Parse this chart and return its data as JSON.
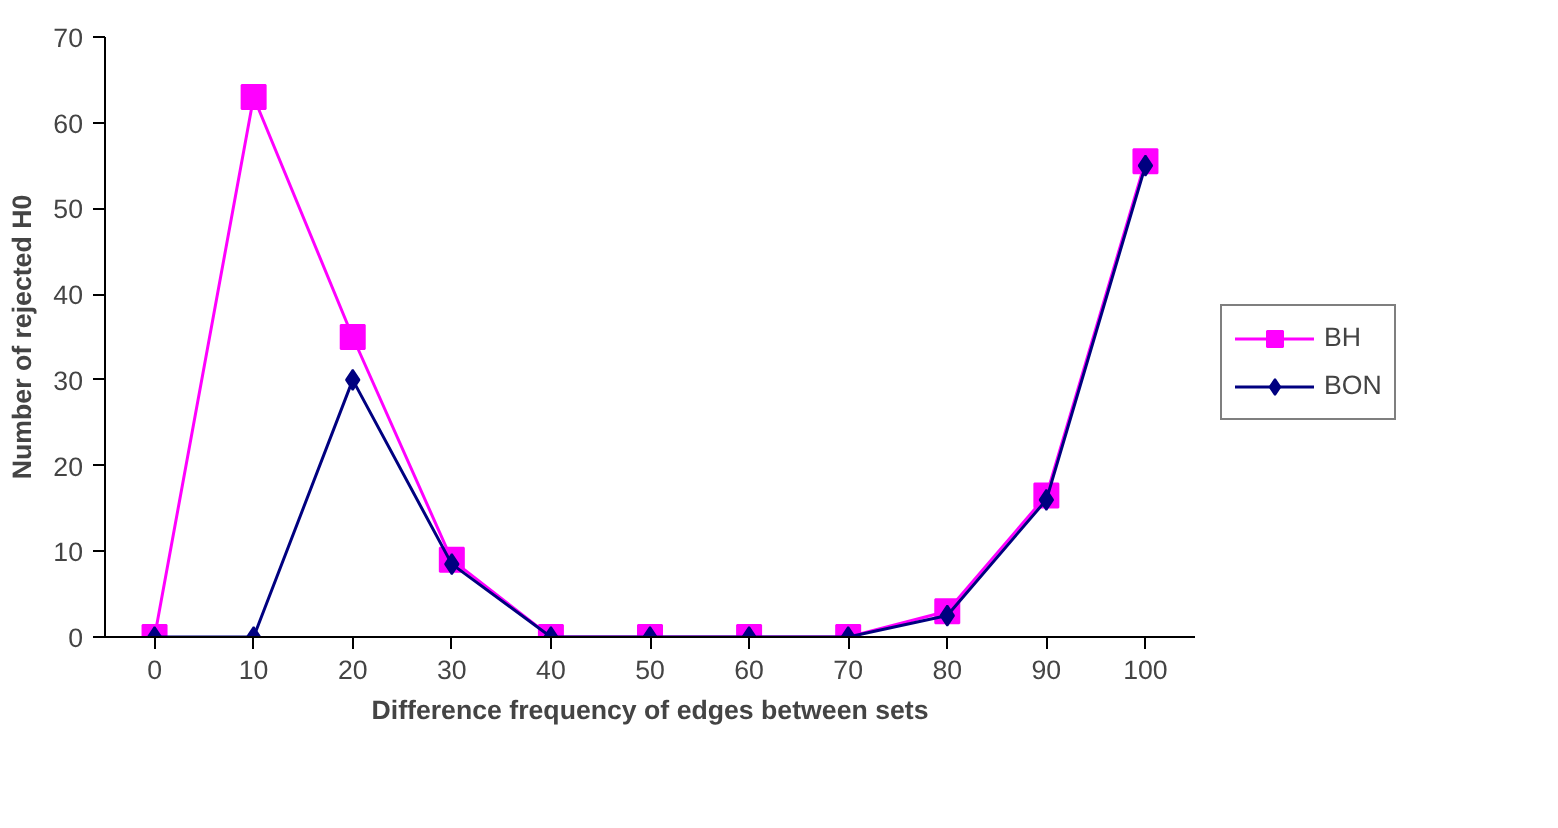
{
  "chart_data": {
    "type": "line",
    "xlabel": "Difference frequency of edges between sets",
    "ylabel": "Number of rejected H0",
    "categories": [
      "0",
      "10",
      "20",
      "30",
      "40",
      "50",
      "60",
      "70",
      "80",
      "90",
      "100"
    ],
    "series": [
      {
        "name": "BH",
        "color": "#ff00ff",
        "marker": "square",
        "values": [
          0,
          63,
          35,
          9,
          0,
          0,
          0,
          0,
          3,
          16.5,
          55.5
        ]
      },
      {
        "name": "BON",
        "color": "#000080",
        "marker": "diamond",
        "values": [
          0,
          0,
          30,
          8.5,
          0,
          0,
          0,
          0,
          2.5,
          16,
          55
        ]
      }
    ],
    "ylim": [
      0,
      70
    ],
    "yticks": [
      0,
      10,
      20,
      30,
      40,
      50,
      60,
      70
    ],
    "grid": false,
    "legend": "right",
    "line_style": "solid"
  }
}
